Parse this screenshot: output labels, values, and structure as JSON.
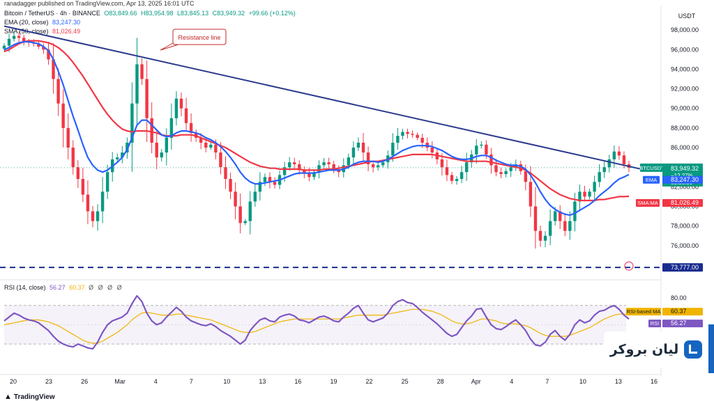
{
  "published": "ranadagger published on TradingView.com, Apr 13, 2025 16:01 UTC",
  "header": {
    "symbol": "Bitcoin / TetherUS · 4h · BINANCE",
    "open": "O83,849.66",
    "high": "H83,954.98",
    "low": "L83,845.13",
    "close": "C83,949.32",
    "change": "+99.66 (+0.12%)",
    "ema_label": "EMA (20, close)",
    "ema_value": "83,247.30",
    "sma_label": "SMA (50, close)",
    "sma_value": "81,026.49",
    "rsi_label": "RSI (14, close)",
    "rsi_value": "56.27",
    "rsi_ma_value": "60.37",
    "rsi_dots": "Ø Ø Ø Ø"
  },
  "colors": {
    "up": "#089981",
    "down": "#f23645",
    "ema": "#2962ff",
    "sma": "#f23645",
    "trendline": "#2b3a8c",
    "rsi": "#7e57c2",
    "rsi_ma": "#f0b400",
    "price_tag": "#089981"
  },
  "annotation": "Resistance line",
  "price_axis": {
    "currency": "USDT",
    "ticks": [
      "98,000.00",
      "96,000.00",
      "94,000.00",
      "92,000.00",
      "90,000.00",
      "88,000.00",
      "86,000.00",
      "82,000.00",
      "80,000.00",
      "78,000.00",
      "76,000.00"
    ]
  },
  "price_tags": {
    "symbol": "BTCUSDT",
    "price": "83,949.32",
    "change": "−12.27%",
    "countdown": "03:58:30",
    "ema_name": "EMA",
    "ema_value": "83,247.30",
    "sma_name": "SMA:MA",
    "sma_value": "81,026.49",
    "support_value": "73,777.00"
  },
  "rsi_axis": {
    "tick": "80.00",
    "ma_name": "RSI-based MA",
    "ma_value": "60.37",
    "rsi_name": "RSI",
    "rsi_value": "56.27"
  },
  "time_axis": [
    "20",
    "23",
    "26",
    "Mar",
    "4",
    "7",
    "10",
    "13",
    "16",
    "19",
    "22",
    "25",
    "28",
    "Apr",
    "4",
    "7",
    "10",
    "13",
    "16"
  ],
  "brand": {
    "logo_text": "لیان بروکر",
    "tradingview": "TradingView"
  },
  "chart_data": {
    "type": "line",
    "price_range": [
      73000,
      99500
    ],
    "rsi_range": [
      20,
      85
    ],
    "series": [
      {
        "name": "BTCUSDT",
        "values": [
          96400,
          97100,
          97400,
          97200,
          96800,
          96700,
          96600,
          96300,
          96000,
          95000,
          93000,
          90500,
          88000,
          86000,
          84000,
          82800,
          81200,
          79500,
          78500,
          79500,
          81500,
          83500,
          84800,
          85000,
          85500,
          86500,
          90500,
          94500,
          93000,
          89000,
          86500,
          85000,
          85500,
          87000,
          89000,
          91000,
          90000,
          88500,
          87500,
          87000,
          86500,
          86000,
          86300,
          85500,
          84000,
          82800,
          81500,
          80000,
          78300,
          78500,
          80500,
          81500,
          82500,
          83000,
          82500,
          82200,
          83200,
          84000,
          84500,
          84300,
          83700,
          83400,
          83000,
          83500,
          84200,
          84500,
          84300,
          83800,
          83500,
          84200,
          85000,
          86000,
          86500,
          85500,
          84300,
          84000,
          84200,
          84500,
          85200,
          86500,
          87200,
          87600,
          87400,
          87300,
          87000,
          86500,
          86000,
          85500,
          84800,
          84000,
          83200,
          82600,
          82800,
          83500,
          84500,
          85300,
          86200,
          86300,
          85300,
          84200,
          83500,
          83300,
          83600,
          84000,
          84300,
          83600,
          82500,
          80000,
          77500,
          76500,
          77000,
          78500,
          79500,
          78500,
          77500,
          78500,
          80500,
          81500,
          81000,
          81500,
          82500,
          83500,
          84000,
          84800,
          85600,
          85200,
          84300,
          83949
        ]
      },
      {
        "name": "EMA",
        "values": [
          96000,
          96200,
          96500,
          96700,
          96800,
          96800,
          96700,
          96600,
          96300,
          95900,
          95000,
          93800,
          92400,
          90800,
          89200,
          87800,
          86300,
          85000,
          84200,
          83700,
          83500,
          83700,
          84100,
          84500,
          85000,
          85800,
          87000,
          88300,
          88800,
          88800,
          88300,
          87800,
          87300,
          87100,
          87200,
          87500,
          87700,
          87700,
          87600,
          87500,
          87300,
          87000,
          86800,
          86500,
          86100,
          85600,
          85000,
          84300,
          83500,
          82900,
          82500,
          82300,
          82300,
          82400,
          82500,
          82600,
          82700,
          82900,
          83100,
          83300,
          83400,
          83400,
          83400,
          83400,
          83500,
          83600,
          83700,
          83700,
          83700,
          83800,
          84000,
          84300,
          84500,
          84600,
          84600,
          84600,
          84500,
          84600,
          84800,
          85100,
          85400,
          85700,
          85900,
          86100,
          86200,
          86200,
          86200,
          86100,
          85900,
          85700,
          85400,
          85100,
          84900,
          84800,
          84800,
          84900,
          85100,
          85200,
          85200,
          85000,
          84700,
          84500,
          84300,
          84200,
          84200,
          84100,
          83800,
          83200,
          82400,
          81500,
          80700,
          80100,
          79700,
          79400,
          79200,
          79100,
          79300,
          79600,
          79900,
          80200,
          80600,
          81100,
          81500,
          81900,
          82400,
          82800,
          83000,
          83247
        ]
      },
      {
        "name": "SMA",
        "values": [
          95800,
          96000,
          96300,
          96600,
          96800,
          96900,
          96900,
          96900,
          96800,
          96700,
          96500,
          96200,
          95800,
          95300,
          94700,
          94000,
          93300,
          92500,
          91700,
          90900,
          90100,
          89400,
          88800,
          88300,
          87900,
          87700,
          87600,
          87700,
          87700,
          87700,
          87600,
          87500,
          87300,
          87200,
          87200,
          87200,
          87300,
          87300,
          87300,
          87200,
          87000,
          86800,
          86600,
          86400,
          86200,
          86000,
          85700,
          85400,
          85100,
          84800,
          84500,
          84300,
          84100,
          84000,
          83900,
          83900,
          83800,
          83800,
          83800,
          83800,
          83800,
          83700,
          83700,
          83700,
          83700,
          83800,
          83800,
          83800,
          83900,
          84000,
          84100,
          84200,
          84300,
          84400,
          84500,
          84600,
          84600,
          84700,
          84800,
          84900,
          85000,
          85100,
          85200,
          85300,
          85300,
          85300,
          85300,
          85300,
          85200,
          85100,
          85000,
          84900,
          84800,
          84700,
          84600,
          84600,
          84600,
          84600,
          84600,
          84500,
          84400,
          84300,
          84200,
          84100,
          84000,
          83900,
          83700,
          83400,
          83000,
          82600,
          82200,
          81800,
          81500,
          81200,
          81000,
          80800,
          80700,
          80600,
          80600,
          80600,
          80600,
          80700,
          80700,
          80800,
          80900,
          81000,
          81000,
          81026
        ]
      },
      {
        "name": "RSI",
        "values": [
          54,
          58,
          62,
          60,
          57,
          55,
          54,
          52,
          48,
          44,
          38,
          33,
          30,
          28,
          27,
          30,
          28,
          26,
          25,
          32,
          42,
          50,
          54,
          56,
          58,
          62,
          72,
          80,
          74,
          62,
          54,
          50,
          52,
          58,
          63,
          68,
          64,
          58,
          54,
          52,
          50,
          49,
          51,
          48,
          44,
          41,
          38,
          34,
          30,
          34,
          44,
          50,
          55,
          57,
          54,
          53,
          58,
          60,
          61,
          59,
          55,
          54,
          52,
          55,
          58,
          59,
          57,
          54,
          53,
          58,
          62,
          67,
          70,
          62,
          55,
          53,
          55,
          57,
          62,
          70,
          74,
          76,
          73,
          72,
          68,
          63,
          59,
          55,
          51,
          46,
          41,
          38,
          40,
          47,
          54,
          59,
          66,
          67,
          58,
          50,
          46,
          45,
          48,
          52,
          55,
          50,
          44,
          35,
          29,
          28,
          32,
          40,
          44,
          38,
          34,
          40,
          50,
          55,
          52,
          54,
          60,
          64,
          65,
          68,
          70,
          66,
          60,
          56
        ]
      },
      {
        "name": "RSI-based MA",
        "values": [
          50,
          51,
          52,
          53,
          54,
          55,
          55,
          55,
          54,
          53,
          51,
          49,
          46,
          43,
          40,
          37,
          34,
          32,
          31,
          31,
          33,
          36,
          39,
          42,
          46,
          50,
          55,
          59,
          62,
          63,
          62,
          61,
          60,
          60,
          60,
          61,
          61,
          60,
          59,
          58,
          57,
          56,
          55,
          53,
          51,
          49,
          47,
          45,
          43,
          42,
          42,
          43,
          45,
          47,
          49,
          51,
          53,
          54,
          55,
          56,
          56,
          56,
          56,
          56,
          56,
          56,
          56,
          56,
          56,
          57,
          58,
          59,
          60,
          60,
          60,
          60,
          60,
          60,
          61,
          62,
          63,
          64,
          65,
          66,
          66,
          66,
          65,
          64,
          62,
          60,
          57,
          54,
          52,
          51,
          51,
          52,
          54,
          56,
          56,
          55,
          54,
          52,
          51,
          51,
          51,
          50,
          49,
          47,
          44,
          41,
          39,
          38,
          38,
          38,
          38,
          39,
          41,
          43,
          45,
          47,
          50,
          53,
          56,
          58,
          60,
          61,
          61,
          60.37
        ]
      }
    ],
    "trendline": {
      "start": 98400,
      "end": 83800
    },
    "support_level": 73777,
    "rsi_bands": [
      70,
      30
    ]
  }
}
